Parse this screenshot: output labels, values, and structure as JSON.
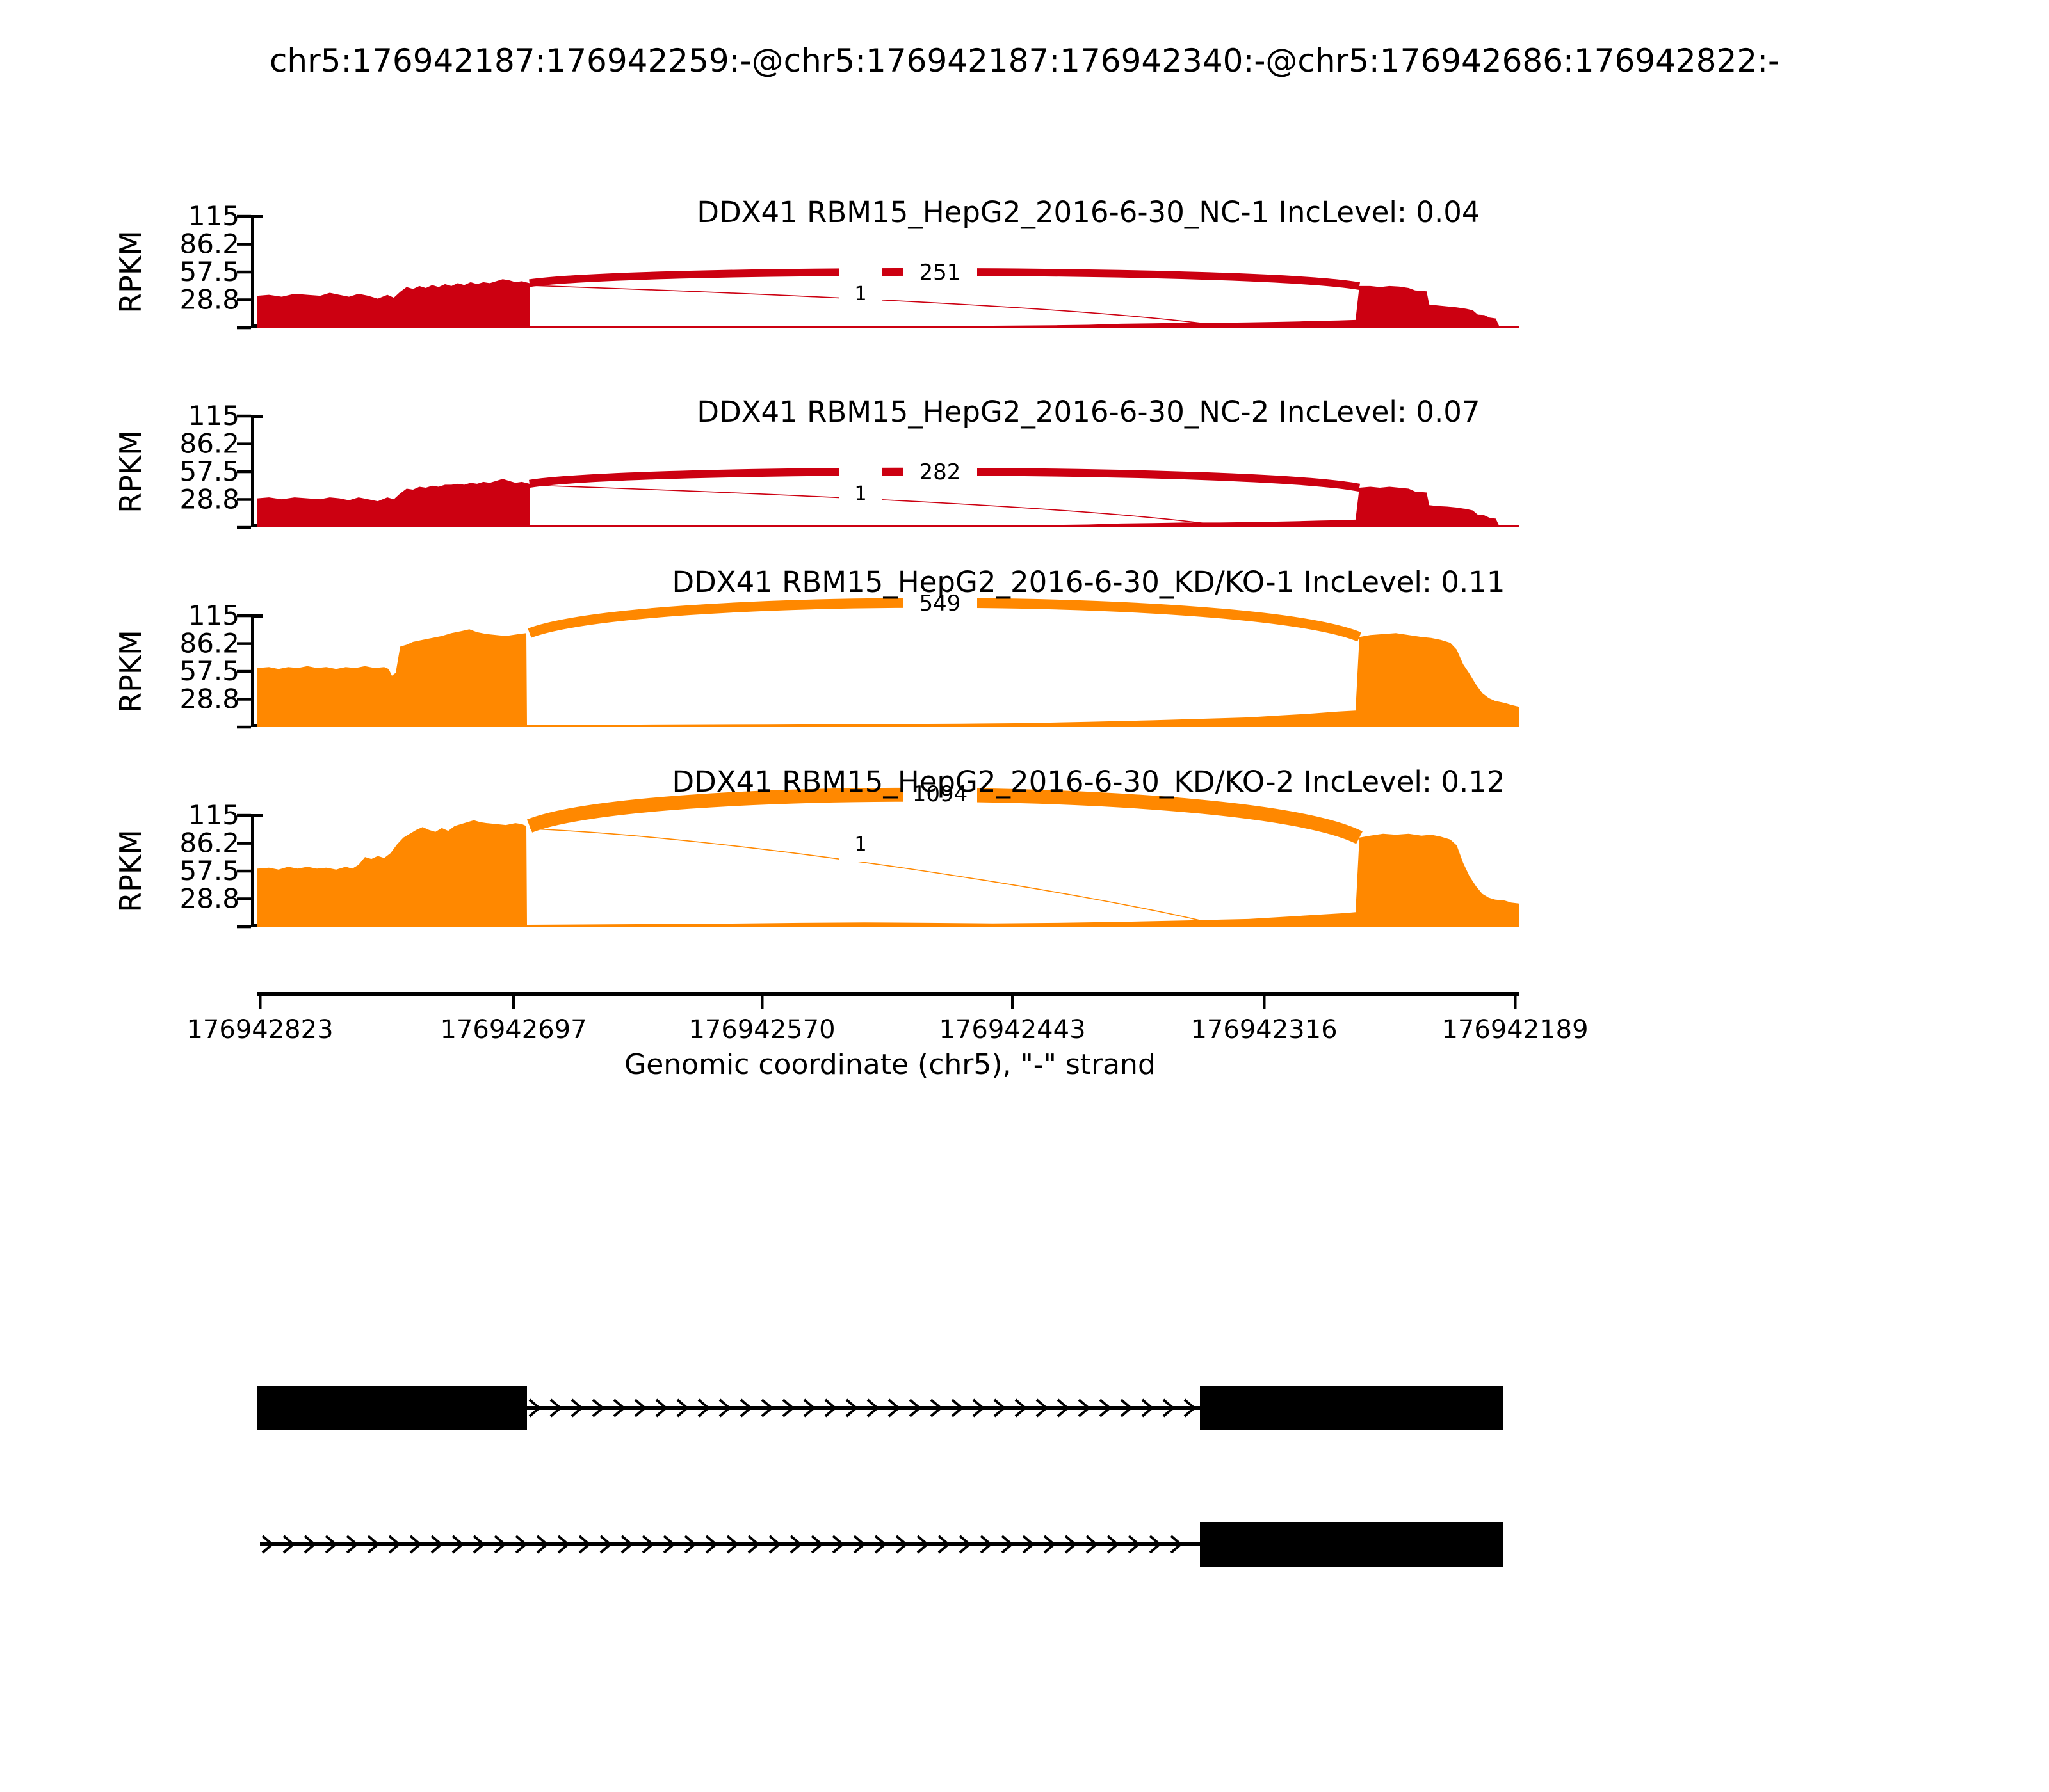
{
  "title": "chr5:176942187:176942259:-@chr5:176942187:176942340:-@chr5:176942686:176942822:-",
  "colors": {
    "group1_red": "#CC0011",
    "group2_orange": "#FF8800",
    "junction_label": "#000000",
    "axis": "#000000",
    "exon_box": "#000000",
    "background": "#ffffff"
  },
  "y_axis": {
    "label": "RPKM",
    "ticks": [
      "115",
      "86.2",
      "57.5",
      "28.8"
    ],
    "max": 115
  },
  "x_axis": {
    "label": "Genomic coordinate (chr5), \"-\" strand",
    "ticks": [
      "176942823",
      "176942697",
      "176942570",
      "176942443",
      "176942316",
      "176942189"
    ]
  },
  "chart_data": {
    "type": "sashimi",
    "title": "chr5:176942187:176942259:-@chr5:176942187:176942340:-@chr5:176942686:176942822:-",
    "ylabel": "RPKM",
    "ylim": [
      0,
      115
    ],
    "y_ticks": [
      115,
      86.2,
      57.5,
      28.8
    ],
    "x_tick_labels": [
      "176942823",
      "176942697",
      "176942570",
      "176942443",
      "176942316",
      "176942189"
    ],
    "strand": "-",
    "chromosome": "chr5",
    "event_exons": [
      "176942187-176942259",
      "176942187-176942340",
      "176942686-176942822"
    ],
    "tracks": [
      {
        "name": "DDX41 RBM15_HepG2_2016-6-30_NC-1",
        "group": "NC",
        "inc_level": 0.04,
        "title": "DDX41 RBM15_HepG2_2016-6-30_NC-1 IncLevel: 0.04",
        "color": "#CC0011",
        "junctions": [
          {
            "label": "251",
            "reads": 251,
            "type": "skipping"
          },
          {
            "label": "1",
            "reads": 1,
            "type": "inclusion"
          }
        ],
        "profile": [
          [
            402,
            33
          ],
          [
            420,
            34
          ],
          [
            440,
            32
          ],
          [
            460,
            35
          ],
          [
            480,
            34
          ],
          [
            500,
            33
          ],
          [
            515,
            36
          ],
          [
            530,
            34
          ],
          [
            545,
            32
          ],
          [
            560,
            35
          ],
          [
            575,
            33
          ],
          [
            590,
            30
          ],
          [
            605,
            34
          ],
          [
            615,
            31
          ],
          [
            625,
            37
          ],
          [
            635,
            42
          ],
          [
            645,
            40
          ],
          [
            655,
            43
          ],
          [
            665,
            41
          ],
          [
            675,
            44
          ],
          [
            685,
            42
          ],
          [
            695,
            45
          ],
          [
            705,
            43
          ],
          [
            715,
            46
          ],
          [
            725,
            44
          ],
          [
            735,
            47
          ],
          [
            745,
            45
          ],
          [
            755,
            47
          ],
          [
            765,
            46
          ],
          [
            775,
            48
          ],
          [
            785,
            50
          ],
          [
            795,
            49
          ],
          [
            805,
            47
          ],
          [
            815,
            48
          ],
          [
            827,
            46
          ],
          [
            828,
            1.5
          ],
          [
            1000,
            1.5
          ],
          [
            1200,
            1.5
          ],
          [
            1400,
            1.5
          ],
          [
            1550,
            2
          ],
          [
            1650,
            2.5
          ],
          [
            1700,
            3
          ],
          [
            1750,
            4
          ],
          [
            1800,
            4.5
          ],
          [
            1850,
            5
          ],
          [
            1900,
            5
          ],
          [
            1950,
            5.5
          ],
          [
            2000,
            6
          ],
          [
            2030,
            6.5
          ],
          [
            2060,
            7
          ],
          [
            2090,
            7.5
          ],
          [
            2117,
            8
          ],
          [
            2123,
            43
          ],
          [
            2140,
            43
          ],
          [
            2155,
            42
          ],
          [
            2170,
            43
          ],
          [
            2185,
            42.5
          ],
          [
            2200,
            41
          ],
          [
            2210,
            38.5
          ],
          [
            2220,
            38
          ],
          [
            2228,
            37.5
          ],
          [
            2232,
            24
          ],
          [
            2245,
            23
          ],
          [
            2260,
            22
          ],
          [
            2275,
            21
          ],
          [
            2290,
            19.5
          ],
          [
            2300,
            18
          ],
          [
            2308,
            13.5
          ],
          [
            2318,
            13
          ],
          [
            2326,
            10.5
          ],
          [
            2336,
            9.5
          ],
          [
            2341,
            2
          ],
          [
            2372,
            2
          ]
        ]
      },
      {
        "name": "DDX41 RBM15_HepG2_2016-6-30_NC-2",
        "group": "NC",
        "inc_level": 0.07,
        "title": "DDX41 RBM15_HepG2_2016-6-30_NC-2 IncLevel: 0.07",
        "color": "#CC0011",
        "junctions": [
          {
            "label": "282",
            "reads": 282,
            "type": "skipping"
          },
          {
            "label": "1",
            "reads": 1,
            "type": "inclusion"
          }
        ],
        "profile": [
          [
            402,
            30
          ],
          [
            420,
            31
          ],
          [
            440,
            29
          ],
          [
            460,
            31
          ],
          [
            480,
            30
          ],
          [
            500,
            29
          ],
          [
            515,
            31
          ],
          [
            530,
            30
          ],
          [
            545,
            28
          ],
          [
            560,
            31
          ],
          [
            575,
            29
          ],
          [
            590,
            27
          ],
          [
            605,
            31
          ],
          [
            615,
            29
          ],
          [
            625,
            35
          ],
          [
            635,
            40
          ],
          [
            645,
            39
          ],
          [
            655,
            42
          ],
          [
            665,
            41
          ],
          [
            675,
            43
          ],
          [
            685,
            42
          ],
          [
            695,
            44
          ],
          [
            705,
            44
          ],
          [
            715,
            45
          ],
          [
            725,
            44
          ],
          [
            735,
            46
          ],
          [
            745,
            45
          ],
          [
            755,
            47
          ],
          [
            765,
            46
          ],
          [
            775,
            48
          ],
          [
            785,
            50
          ],
          [
            795,
            48
          ],
          [
            805,
            46
          ],
          [
            815,
            47
          ],
          [
            827,
            45
          ],
          [
            828,
            1.5
          ],
          [
            1000,
            1.5
          ],
          [
            1200,
            1.5
          ],
          [
            1400,
            1.5
          ],
          [
            1550,
            2
          ],
          [
            1650,
            2.5
          ],
          [
            1700,
            3
          ],
          [
            1750,
            4
          ],
          [
            1800,
            4.5
          ],
          [
            1850,
            5
          ],
          [
            1900,
            5
          ],
          [
            1950,
            5.5
          ],
          [
            2000,
            6
          ],
          [
            2030,
            6.5
          ],
          [
            2060,
            7
          ],
          [
            2090,
            7.5
          ],
          [
            2117,
            8
          ],
          [
            2123,
            41
          ],
          [
            2140,
            42
          ],
          [
            2155,
            41
          ],
          [
            2170,
            42
          ],
          [
            2185,
            41
          ],
          [
            2200,
            40
          ],
          [
            2210,
            37
          ],
          [
            2220,
            36.5
          ],
          [
            2228,
            36
          ],
          [
            2232,
            23
          ],
          [
            2245,
            22
          ],
          [
            2260,
            21.5
          ],
          [
            2275,
            20.5
          ],
          [
            2290,
            19
          ],
          [
            2300,
            17.5
          ],
          [
            2308,
            13
          ],
          [
            2318,
            12.5
          ],
          [
            2326,
            10
          ],
          [
            2336,
            9
          ],
          [
            2341,
            2
          ],
          [
            2372,
            2
          ]
        ]
      },
      {
        "name": "DDX41 RBM15_HepG2_2016-6-30_KD/KO-1",
        "group": "KD/KO",
        "inc_level": 0.11,
        "title": "DDX41 RBM15_HepG2_2016-6-30_KD/KO-1 IncLevel: 0.11",
        "color": "#FF8800",
        "junctions": [
          {
            "label": "549",
            "reads": 549,
            "type": "skipping"
          }
        ],
        "profile": [
          [
            402,
            61
          ],
          [
            420,
            62
          ],
          [
            435,
            60
          ],
          [
            450,
            62
          ],
          [
            465,
            61
          ],
          [
            480,
            63
          ],
          [
            495,
            61
          ],
          [
            510,
            62
          ],
          [
            525,
            60
          ],
          [
            540,
            62
          ],
          [
            555,
            61
          ],
          [
            570,
            63
          ],
          [
            585,
            61
          ],
          [
            600,
            62
          ],
          [
            607,
            60
          ],
          [
            612,
            53
          ],
          [
            618,
            56
          ],
          [
            625,
            83
          ],
          [
            635,
            85
          ],
          [
            645,
            88
          ],
          [
            660,
            90
          ],
          [
            675,
            92
          ],
          [
            690,
            94
          ],
          [
            705,
            97
          ],
          [
            720,
            99
          ],
          [
            733,
            101
          ],
          [
            745,
            98
          ],
          [
            760,
            96
          ],
          [
            775,
            95
          ],
          [
            790,
            94
          ],
          [
            800,
            95
          ],
          [
            810,
            96
          ],
          [
            822,
            97
          ],
          [
            823,
            2
          ],
          [
            1000,
            2
          ],
          [
            1200,
            2.5
          ],
          [
            1350,
            3
          ],
          [
            1500,
            3.5
          ],
          [
            1600,
            4
          ],
          [
            1700,
            5.5
          ],
          [
            1800,
            7
          ],
          [
            1900,
            9
          ],
          [
            1950,
            10
          ],
          [
            2000,
            12
          ],
          [
            2050,
            14
          ],
          [
            2090,
            16
          ],
          [
            2117,
            17
          ],
          [
            2123,
            93
          ],
          [
            2140,
            95
          ],
          [
            2160,
            96
          ],
          [
            2180,
            97
          ],
          [
            2200,
            95
          ],
          [
            2220,
            93
          ],
          [
            2235,
            92
          ],
          [
            2250,
            90
          ],
          [
            2265,
            87
          ],
          [
            2275,
            80
          ],
          [
            2285,
            65
          ],
          [
            2295,
            55
          ],
          [
            2305,
            44
          ],
          [
            2315,
            35
          ],
          [
            2325,
            30
          ],
          [
            2335,
            27
          ],
          [
            2350,
            25
          ],
          [
            2360,
            23
          ],
          [
            2372,
            21
          ]
        ]
      },
      {
        "name": "DDX41 RBM15_HepG2_2016-6-30_KD/KO-2",
        "group": "KD/KO",
        "inc_level": 0.12,
        "title": "DDX41 RBM15_HepG2_2016-6-30_KD/KO-2 IncLevel: 0.12",
        "color": "#FF8800",
        "junctions": [
          {
            "label": "1094",
            "reads": 1094,
            "type": "skipping"
          },
          {
            "label": "1",
            "reads": 1,
            "type": "inclusion"
          }
        ],
        "profile": [
          [
            402,
            60
          ],
          [
            420,
            61
          ],
          [
            435,
            59
          ],
          [
            450,
            62
          ],
          [
            465,
            60
          ],
          [
            480,
            62
          ],
          [
            495,
            60
          ],
          [
            510,
            61
          ],
          [
            525,
            59
          ],
          [
            540,
            62
          ],
          [
            550,
            60
          ],
          [
            560,
            64
          ],
          [
            570,
            72
          ],
          [
            580,
            70
          ],
          [
            590,
            73
          ],
          [
            600,
            71
          ],
          [
            610,
            76
          ],
          [
            620,
            85
          ],
          [
            630,
            92
          ],
          [
            640,
            96
          ],
          [
            650,
            100
          ],
          [
            660,
            103
          ],
          [
            670,
            100
          ],
          [
            680,
            98
          ],
          [
            690,
            102
          ],
          [
            700,
            99
          ],
          [
            710,
            104
          ],
          [
            720,
            106
          ],
          [
            730,
            108
          ],
          [
            740,
            110
          ],
          [
            750,
            108
          ],
          [
            760,
            107
          ],
          [
            775,
            106
          ],
          [
            790,
            105
          ],
          [
            805,
            107
          ],
          [
            815,
            106
          ],
          [
            822,
            104
          ],
          [
            823,
            2
          ],
          [
            950,
            2.5
          ],
          [
            1100,
            3
          ],
          [
            1250,
            4
          ],
          [
            1350,
            4.5
          ],
          [
            1450,
            4
          ],
          [
            1550,
            3.5
          ],
          [
            1650,
            4
          ],
          [
            1750,
            5
          ],
          [
            1850,
            6.5
          ],
          [
            1950,
            8
          ],
          [
            2050,
            12
          ],
          [
            2100,
            14
          ],
          [
            2117,
            15
          ],
          [
            2123,
            92
          ],
          [
            2140,
            94
          ],
          [
            2160,
            96
          ],
          [
            2180,
            95
          ],
          [
            2200,
            96
          ],
          [
            2220,
            94
          ],
          [
            2235,
            95
          ],
          [
            2250,
            93
          ],
          [
            2265,
            90
          ],
          [
            2275,
            84
          ],
          [
            2285,
            66
          ],
          [
            2295,
            52
          ],
          [
            2305,
            42
          ],
          [
            2315,
            34
          ],
          [
            2325,
            30
          ],
          [
            2335,
            28
          ],
          [
            2350,
            27
          ],
          [
            2360,
            25
          ],
          [
            2372,
            24
          ]
        ]
      }
    ],
    "transcripts": [
      {
        "exons": [
          [
            402,
            823
          ],
          [
            1874,
            2348
          ]
        ],
        "intron_line": [
          823,
          1874
        ]
      },
      {
        "exons": [
          [
            1874,
            2348
          ]
        ],
        "intron_line": [
          406,
          1874
        ]
      }
    ]
  }
}
